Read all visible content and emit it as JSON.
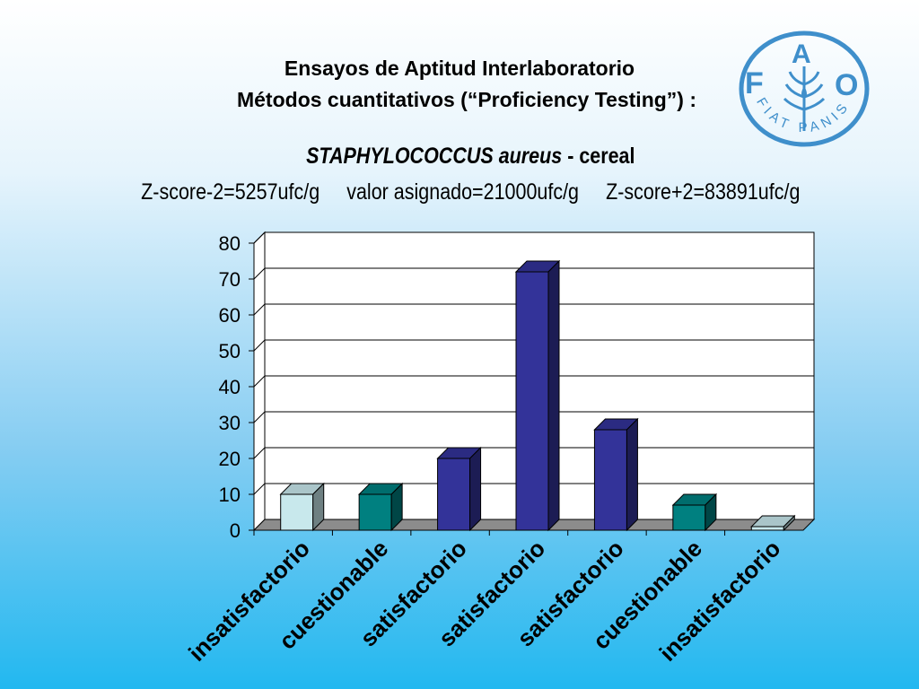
{
  "header": {
    "title_line1": "Ensayos de Aptitud Interlaboratorio",
    "title_line2": "Métodos cuantitativos (“Proficiency Testing”) :",
    "organism": "STAPHYLOCOCCUS aureus",
    "matrix": "- cereal",
    "zscore_low": "Z-score-2=5257ufc/g",
    "assigned_value": "valor asignado=21000ufc/g",
    "zscore_high": "Z-score+2=83891ufc/g"
  },
  "logo": {
    "letters": [
      "F",
      "A",
      "O"
    ],
    "motto": "FIAT PANIS",
    "color": "#3f8fcb"
  },
  "chart_data": {
    "type": "bar",
    "categories": [
      "insatisfactorio",
      "cuestionable",
      "satisfactorio",
      "satisfactorio",
      "satisfactorio",
      "cuestionable",
      "insatisfactorio"
    ],
    "values": [
      10,
      10,
      20,
      72,
      28,
      7,
      1
    ],
    "colors": [
      "#c8e8ec",
      "#008080",
      "#333399",
      "#333399",
      "#333399",
      "#008080",
      "#c8e8ec"
    ],
    "yticks": [
      0,
      10,
      20,
      30,
      40,
      50,
      60,
      70,
      80
    ],
    "ylim": [
      0,
      80
    ],
    "grid": true,
    "three_d": true
  }
}
